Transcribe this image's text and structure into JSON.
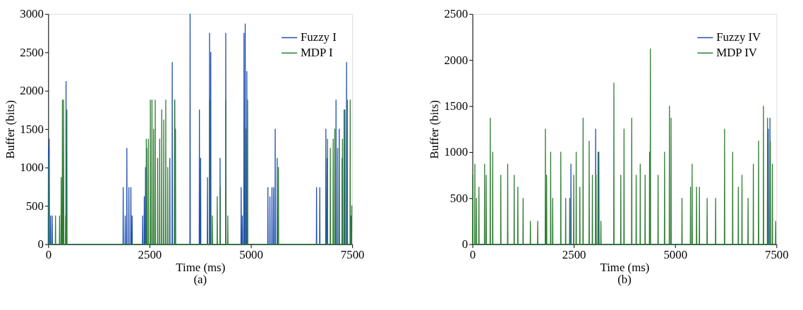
{
  "chart_data": [
    {
      "type": "line",
      "xlabel": "Time (ms)",
      "ylabel": "Buffer (bits)",
      "annotations": [
        "(a)"
      ],
      "xlim": [
        0,
        7500
      ],
      "xticks": [
        0,
        2500,
        5000,
        7500
      ],
      "ylim": [
        0,
        3000
      ],
      "yticks": [
        0,
        500,
        1000,
        1500,
        2000,
        2500,
        3000
      ],
      "grid": false,
      "legend": "top right",
      "line_style": "solid",
      "marker": "none",
      "series": [
        {
          "name": "Fuzzy I",
          "color": "#1f4fb0",
          "x": [
            0,
            5,
            10,
            20,
            25,
            30,
            55,
            60,
            65,
            95,
            100,
            105,
            435,
            440,
            445,
            1845,
            1850,
            1855,
            1895,
            1900,
            1905,
            1935,
            1940,
            1945,
            1985,
            1990,
            1995,
            2035,
            2040,
            2045,
            2065,
            2070,
            2075,
            2325,
            2330,
            2335,
            2365,
            2370,
            2375,
            2395,
            2400,
            2405,
            2425,
            2430,
            2435,
            2995,
            3000,
            3005,
            3055,
            3060,
            3065,
            3115,
            3120,
            3125,
            3495,
            3500,
            3505,
            3725,
            3730,
            3735,
            3755,
            3760,
            3765,
            3925,
            3930,
            3935,
            3975,
            3980,
            3985,
            4005,
            4010,
            4015,
            4235,
            4240,
            4245,
            4375,
            4380,
            4385,
            4755,
            4760,
            4765,
            4785,
            4790,
            4795,
            4825,
            4830,
            4835,
            4855,
            4860,
            4865,
            4895,
            4900,
            4905,
            5415,
            5420,
            5425,
            5465,
            5470,
            5475,
            5515,
            5520,
            5525,
            5555,
            5560,
            5565,
            5595,
            5600,
            5605,
            5645,
            5650,
            5655,
            6615,
            6620,
            6625,
            6695,
            6700,
            6705,
            6845,
            6850,
            6855,
            6875,
            6880,
            6885,
            7095,
            7100,
            7105,
            7175,
            7180,
            7185,
            7245,
            7250,
            7255,
            7295,
            7300,
            7305,
            7355,
            7360,
            7365,
            7465,
            7470,
            7475,
            7500
          ],
          "values": [
            0,
            1250,
            0,
            0,
            1370,
            0,
            0,
            370,
            0,
            0,
            370,
            0,
            0,
            2120,
            0,
            0,
            740,
            0,
            0,
            370,
            0,
            0,
            1250,
            0,
            0,
            740,
            0,
            0,
            740,
            0,
            0,
            370,
            0,
            0,
            370,
            0,
            0,
            620,
            0,
            0,
            1000,
            0,
            0,
            1250,
            0,
            0,
            1120,
            0,
            0,
            2370,
            0,
            0,
            1880,
            0,
            0,
            3000,
            0,
            0,
            1750,
            0,
            0,
            1120,
            0,
            0,
            870,
            0,
            0,
            2750,
            0,
            0,
            2500,
            0,
            0,
            1120,
            0,
            0,
            2750,
            0,
            0,
            740,
            0,
            0,
            370,
            0,
            0,
            2750,
            0,
            0,
            2870,
            0,
            0,
            2250,
            0,
            0,
            740,
            0,
            0,
            620,
            0,
            0,
            740,
            0,
            0,
            740,
            0,
            0,
            1500,
            0,
            0,
            1120,
            0,
            0,
            740,
            0,
            0,
            740,
            0,
            0,
            1500,
            0,
            0,
            1120,
            0,
            0,
            1880,
            0,
            0,
            1500,
            0,
            0,
            1120,
            0,
            0,
            1750,
            0,
            0,
            2370,
            0,
            0,
            370,
            0,
            0
          ]
        },
        {
          "name": "MDP I",
          "color": "#2e7d32",
          "x": [
            0,
            15,
            20,
            25,
            175,
            180,
            185,
            275,
            280,
            285,
            315,
            320,
            325,
            345,
            350,
            355,
            375,
            380,
            385,
            425,
            430,
            435,
            455,
            460,
            465,
            2415,
            2420,
            2425,
            2465,
            2470,
            2475,
            2515,
            2520,
            2525,
            2555,
            2560,
            2565,
            2595,
            2600,
            2605,
            2635,
            2640,
            2645,
            2695,
            2700,
            2705,
            2745,
            2750,
            2755,
            2795,
            2800,
            2805,
            2845,
            2850,
            2855,
            2895,
            2900,
            2905,
            2945,
            2950,
            2955,
            3115,
            3120,
            3125,
            3135,
            3140,
            3145,
            3975,
            3980,
            3985,
            4045,
            4050,
            4055,
            4165,
            4170,
            4175,
            4235,
            4240,
            4245,
            4375,
            4380,
            4385,
            4425,
            4430,
            4435,
            4865,
            4870,
            4875,
            4915,
            4920,
            4925,
            5675,
            5680,
            5685,
            6885,
            6890,
            6895,
            6955,
            6960,
            6965,
            7025,
            7030,
            7035,
            7065,
            7070,
            7075,
            7135,
            7140,
            7145,
            7255,
            7260,
            7265,
            7315,
            7320,
            7325,
            7375,
            7380,
            7385,
            7445,
            7450,
            7455,
            7485,
            7490,
            7500
          ],
          "values": [
            0,
            0,
            1120,
            0,
            0,
            370,
            0,
            0,
            370,
            0,
            0,
            870,
            0,
            0,
            1880,
            0,
            0,
            1880,
            0,
            0,
            370,
            0,
            0,
            1750,
            0,
            0,
            1370,
            0,
            0,
            1370,
            0,
            0,
            1880,
            0,
            0,
            1880,
            0,
            0,
            1500,
            0,
            0,
            1880,
            0,
            0,
            1120,
            0,
            0,
            1370,
            0,
            0,
            1750,
            0,
            0,
            1620,
            0,
            0,
            1880,
            0,
            0,
            1000,
            0,
            0,
            1880,
            0,
            0,
            1500,
            0,
            0,
            1880,
            0,
            0,
            370,
            0,
            0,
            620,
            0,
            0,
            740,
            0,
            0,
            1880,
            0,
            0,
            370,
            0,
            0,
            1500,
            0,
            0,
            1880,
            0,
            0,
            1000,
            0,
            0,
            1370,
            0,
            0,
            1250,
            0,
            0,
            1370,
            0,
            0,
            1500,
            0,
            0,
            1250,
            0,
            0,
            1370,
            0,
            0,
            1750,
            0,
            0,
            1880,
            0,
            0,
            1880,
            0,
            0,
            500,
            500
          ]
        }
      ]
    },
    {
      "type": "line",
      "xlabel": "Time (ms)",
      "ylabel": "Buffer (bits)",
      "annotations": [
        "(b)"
      ],
      "xlim": [
        0,
        7500
      ],
      "xticks": [
        0,
        2500,
        5000,
        7500
      ],
      "ylim": [
        0,
        2500
      ],
      "yticks": [
        0,
        500,
        1000,
        1500,
        2000,
        2500
      ],
      "grid": false,
      "legend": "top right",
      "line_style": "solid",
      "marker": "none",
      "series": [
        {
          "name": "Fuzzy IV",
          "color": "#1f4fb0",
          "x": [
            0,
            2425,
            2430,
            2435,
            3035,
            3040,
            3045,
            3095,
            3100,
            3105,
            7295,
            7300,
            7305,
            7335,
            7340,
            7345,
            7500
          ],
          "values": [
            0,
            0,
            870,
            0,
            0,
            1250,
            0,
            0,
            1000,
            0,
            0,
            1250,
            0,
            0,
            1370,
            0,
            0
          ]
        },
        {
          "name": "MDP IV",
          "color": "#2e7d32",
          "x": [
            0,
            10,
            15,
            55,
            60,
            65,
            95,
            100,
            105,
            155,
            160,
            165,
            295,
            300,
            305,
            335,
            340,
            345,
            435,
            440,
            445,
            495,
            500,
            505,
            695,
            700,
            705,
            865,
            870,
            875,
            1025,
            1030,
            1035,
            1115,
            1120,
            1125,
            1245,
            1250,
            1255,
            1425,
            1430,
            1435,
            1605,
            1610,
            1615,
            1795,
            1800,
            1805,
            1825,
            1830,
            1835,
            1925,
            1930,
            1935,
            1975,
            1980,
            1985,
            2175,
            2180,
            2185,
            2295,
            2300,
            2305,
            2395,
            2400,
            2405,
            2495,
            2500,
            2505,
            2555,
            2560,
            2565,
            2645,
            2650,
            2655,
            2725,
            2730,
            2735,
            2875,
            2880,
            2885,
            2955,
            2960,
            2965,
            3045,
            3050,
            3055,
            3115,
            3120,
            3125,
            3165,
            3170,
            3175,
            3485,
            3490,
            3495,
            3655,
            3660,
            3665,
            3735,
            3740,
            3745,
            3925,
            3930,
            3935,
            4035,
            4040,
            4045,
            4135,
            4140,
            4145,
            4255,
            4260,
            4265,
            4365,
            4370,
            4375,
            4385,
            4390,
            4395,
            4575,
            4580,
            4585,
            4735,
            4740,
            4745,
            4855,
            4860,
            4865,
            4895,
            4900,
            4905,
            5165,
            5170,
            5175,
            5375,
            5380,
            5385,
            5415,
            5420,
            5425,
            5525,
            5530,
            5535,
            5595,
            5600,
            5605,
            5785,
            5790,
            5795,
            5995,
            6000,
            6005,
            6215,
            6220,
            6225,
            6415,
            6420,
            6425,
            6555,
            6560,
            6565,
            6645,
            6650,
            6655,
            6795,
            6800,
            6805,
            6925,
            6930,
            6935,
            7055,
            7060,
            7065,
            7175,
            7180,
            7185,
            7275,
            7280,
            7285,
            7345,
            7350,
            7355,
            7395,
            7400,
            7405,
            7475,
            7480,
            7485,
            7500
          ],
          "values": [
            0,
            750,
            0,
            0,
            870,
            0,
            0,
            500,
            0,
            0,
            620,
            0,
            0,
            870,
            0,
            0,
            750,
            0,
            0,
            1370,
            0,
            0,
            1000,
            0,
            0,
            750,
            0,
            0,
            870,
            0,
            0,
            750,
            0,
            0,
            620,
            0,
            0,
            500,
            0,
            0,
            250,
            0,
            0,
            250,
            0,
            0,
            1250,
            0,
            0,
            750,
            0,
            0,
            1000,
            0,
            0,
            500,
            0,
            0,
            1000,
            0,
            0,
            500,
            0,
            0,
            500,
            0,
            0,
            750,
            0,
            0,
            1000,
            0,
            0,
            620,
            0,
            0,
            1370,
            0,
            0,
            1120,
            0,
            0,
            750,
            0,
            0,
            750,
            0,
            0,
            1000,
            0,
            0,
            250,
            0,
            0,
            1750,
            0,
            0,
            750,
            0,
            0,
            1250,
            0,
            0,
            1370,
            0,
            0,
            750,
            0,
            0,
            870,
            0,
            0,
            750,
            0,
            0,
            1000,
            0,
            0,
            2120,
            0,
            0,
            750,
            0,
            0,
            1000,
            0,
            0,
            1500,
            0,
            0,
            1370,
            0,
            0,
            500,
            0,
            0,
            620,
            0,
            0,
            870,
            0,
            0,
            620,
            0,
            0,
            620,
            0,
            0,
            500,
            0,
            0,
            500,
            0,
            0,
            1250,
            0,
            0,
            1000,
            0,
            0,
            620,
            0,
            0,
            750,
            0,
            0,
            500,
            0,
            0,
            870,
            0,
            0,
            1120,
            0,
            0,
            1500,
            0,
            0,
            1370,
            0,
            0,
            1120,
            0,
            0,
            870,
            0,
            0,
            250,
            0,
            0
          ]
        }
      ]
    }
  ]
}
